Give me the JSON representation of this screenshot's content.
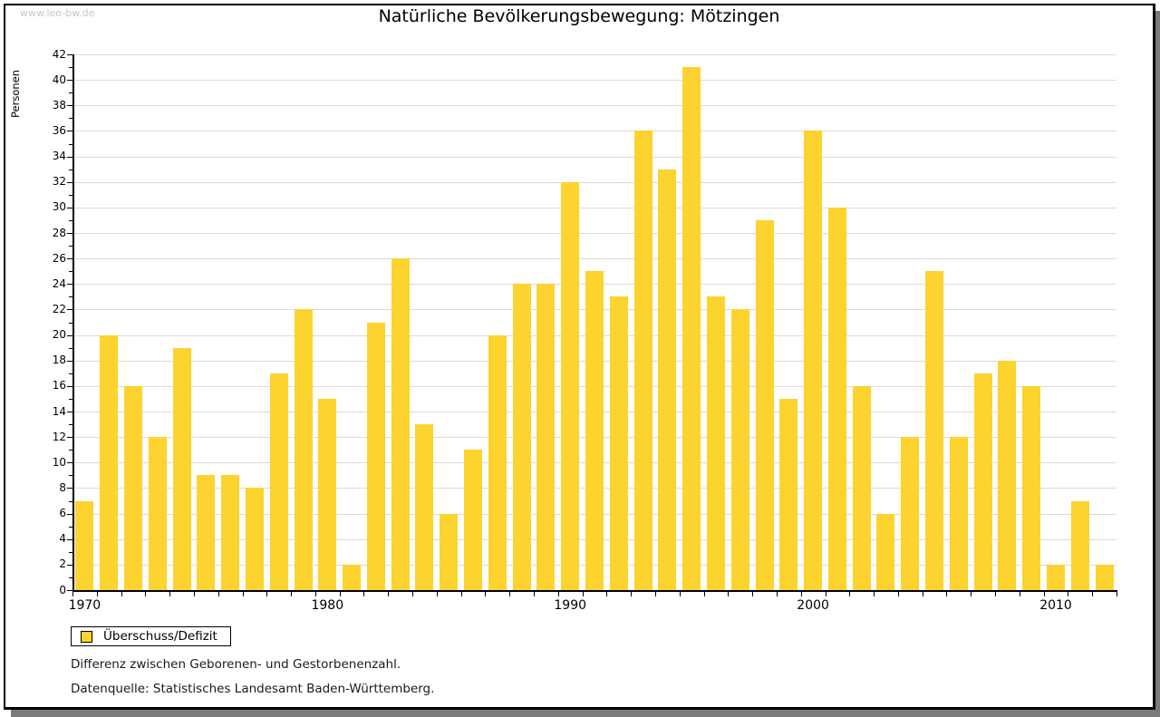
{
  "watermark": "www.leo-bw.de",
  "title": "Natürliche Bevölkerungsbewegung: Mötzingen",
  "ylabel": "Personen",
  "legend": {
    "label": "Überschuss/Defizit"
  },
  "footnotes": {
    "line1": "Differenz zwischen Geborenen- und Gestorbenenzahl.",
    "line2": "Datenquelle: Statistisches Landesamt Baden-Württemberg."
  },
  "colors": {
    "bar": "#fcd32f",
    "grid": "#dadada",
    "axis": "#000000",
    "shadow": "#7b7b7b",
    "watermark": "#c6c6c6"
  },
  "chart_data": {
    "type": "bar",
    "title": "Natürliche Bevölkerungsbewegung: Mötzingen",
    "xlabel": "",
    "ylabel": "Personen",
    "series_name": "Überschuss/Defizit",
    "x": [
      1970,
      1971,
      1972,
      1973,
      1974,
      1975,
      1976,
      1977,
      1978,
      1979,
      1980,
      1981,
      1982,
      1983,
      1984,
      1985,
      1986,
      1987,
      1988,
      1989,
      1990,
      1991,
      1992,
      1993,
      1994,
      1995,
      1996,
      1997,
      1998,
      1999,
      2000,
      2001,
      2002,
      2003,
      2004,
      2005,
      2006,
      2007,
      2008,
      2009,
      2010,
      2011,
      2012
    ],
    "values": [
      7,
      20,
      16,
      12,
      19,
      9,
      9,
      8,
      17,
      22,
      15,
      2,
      21,
      26,
      13,
      6,
      11,
      20,
      24,
      24,
      32,
      25,
      23,
      36,
      33,
      41,
      23,
      22,
      29,
      15,
      36,
      30,
      16,
      6,
      12,
      25,
      12,
      17,
      18,
      16,
      2,
      7,
      2
    ],
    "ylim": [
      0,
      42
    ],
    "ytick_step": 2,
    "yminor_step": 1,
    "xticks_labeled": [
      1970,
      1980,
      1990,
      2000,
      2010
    ],
    "grid": true,
    "legend_position": "bottom-left"
  }
}
